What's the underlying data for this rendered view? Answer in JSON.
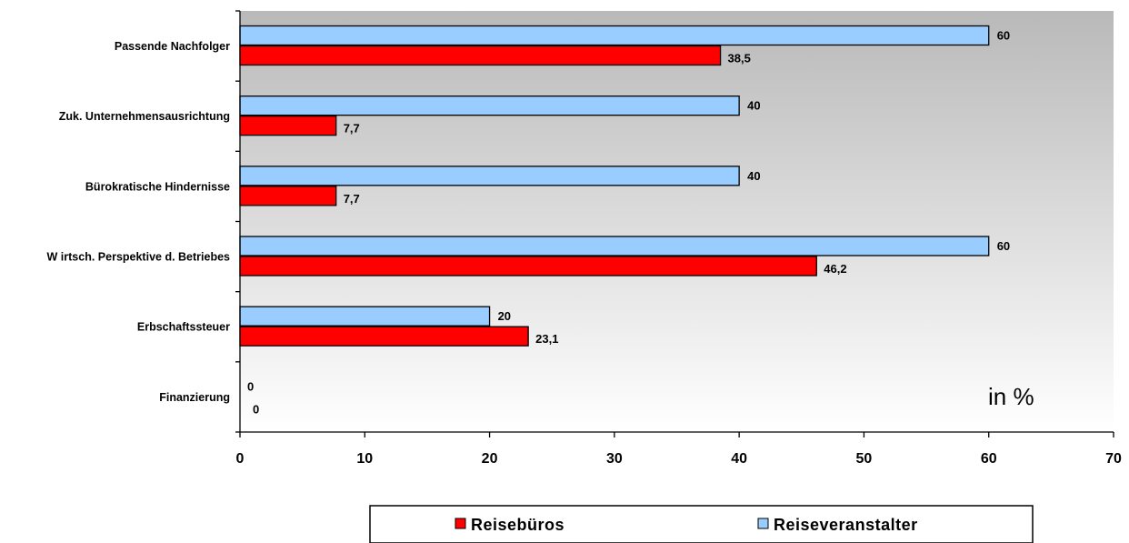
{
  "chart_data": {
    "type": "bar",
    "orientation": "horizontal",
    "categories": [
      "Passende Nachfolger",
      "Zuk. Unternehmensausrichtung",
      "Bürokratische Hindernisse",
      "W irtsch. Perspektive d. Betriebes",
      "Erbschaftssteuer",
      "Finanzierung"
    ],
    "series": [
      {
        "name": "Reiseveranstalter",
        "color": "#99ccff",
        "values": [
          60,
          40,
          40,
          60,
          20,
          0
        ],
        "labels": [
          "60",
          "40",
          "40",
          "60",
          "20",
          "0"
        ]
      },
      {
        "name": "Reisebüros",
        "color": "#ff0000",
        "values": [
          38.5,
          7.7,
          7.7,
          46.2,
          23.1,
          0
        ],
        "labels": [
          "38,5",
          "7,7",
          "7,7",
          "46,2",
          "23,1",
          "0"
        ]
      }
    ],
    "xlim": [
      0,
      70
    ],
    "xticks": [
      "0",
      "10",
      "20",
      "30",
      "40",
      "50",
      "60",
      "70"
    ],
    "unit_label": "in %",
    "legend": {
      "position": "bottom",
      "items": [
        {
          "name": "Reisebüros",
          "color": "#ff0000"
        },
        {
          "name": "Reiseveranstalter",
          "color": "#99ccff"
        }
      ]
    },
    "plot_background": "gradient gray to white",
    "grid": false
  }
}
